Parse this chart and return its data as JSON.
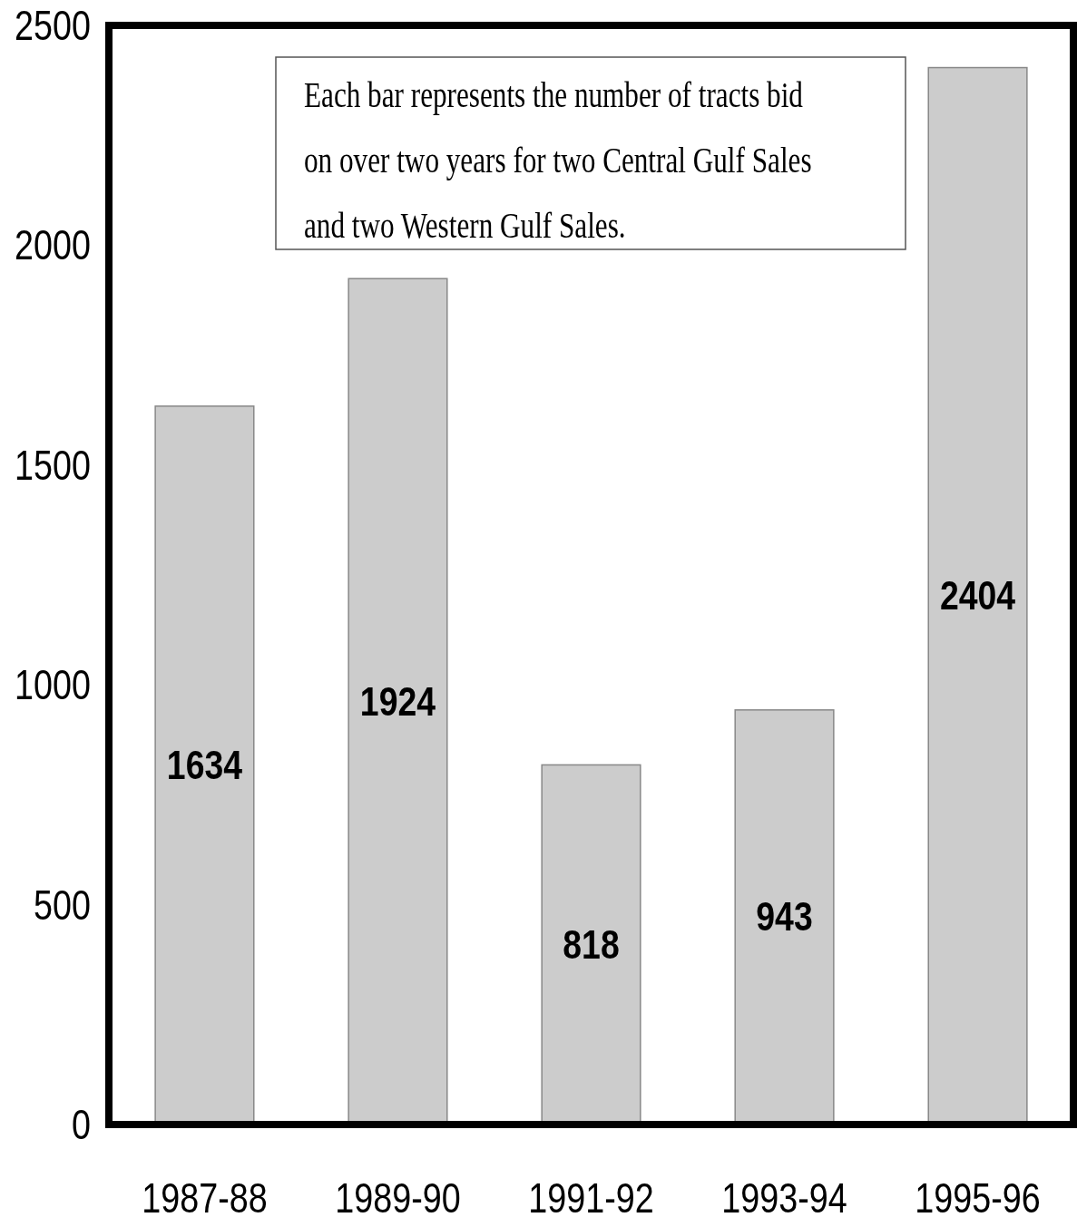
{
  "chart_data": {
    "type": "bar",
    "categories": [
      "1987-88",
      "1989-90",
      "1991-92",
      "1993-94",
      "1995-96"
    ],
    "values": [
      1634,
      1924,
      818,
      943,
      2404
    ],
    "color": "#cccccc",
    "ylim": [
      0,
      2500
    ],
    "yticks": [
      0,
      500,
      1000,
      1500,
      2000,
      2500
    ],
    "grid": false,
    "data_labels": true,
    "annotations": [
      "Each bar represents the number of tracts bid on over two years for two Central Gulf Sales and two Western Gulf Sales."
    ]
  }
}
